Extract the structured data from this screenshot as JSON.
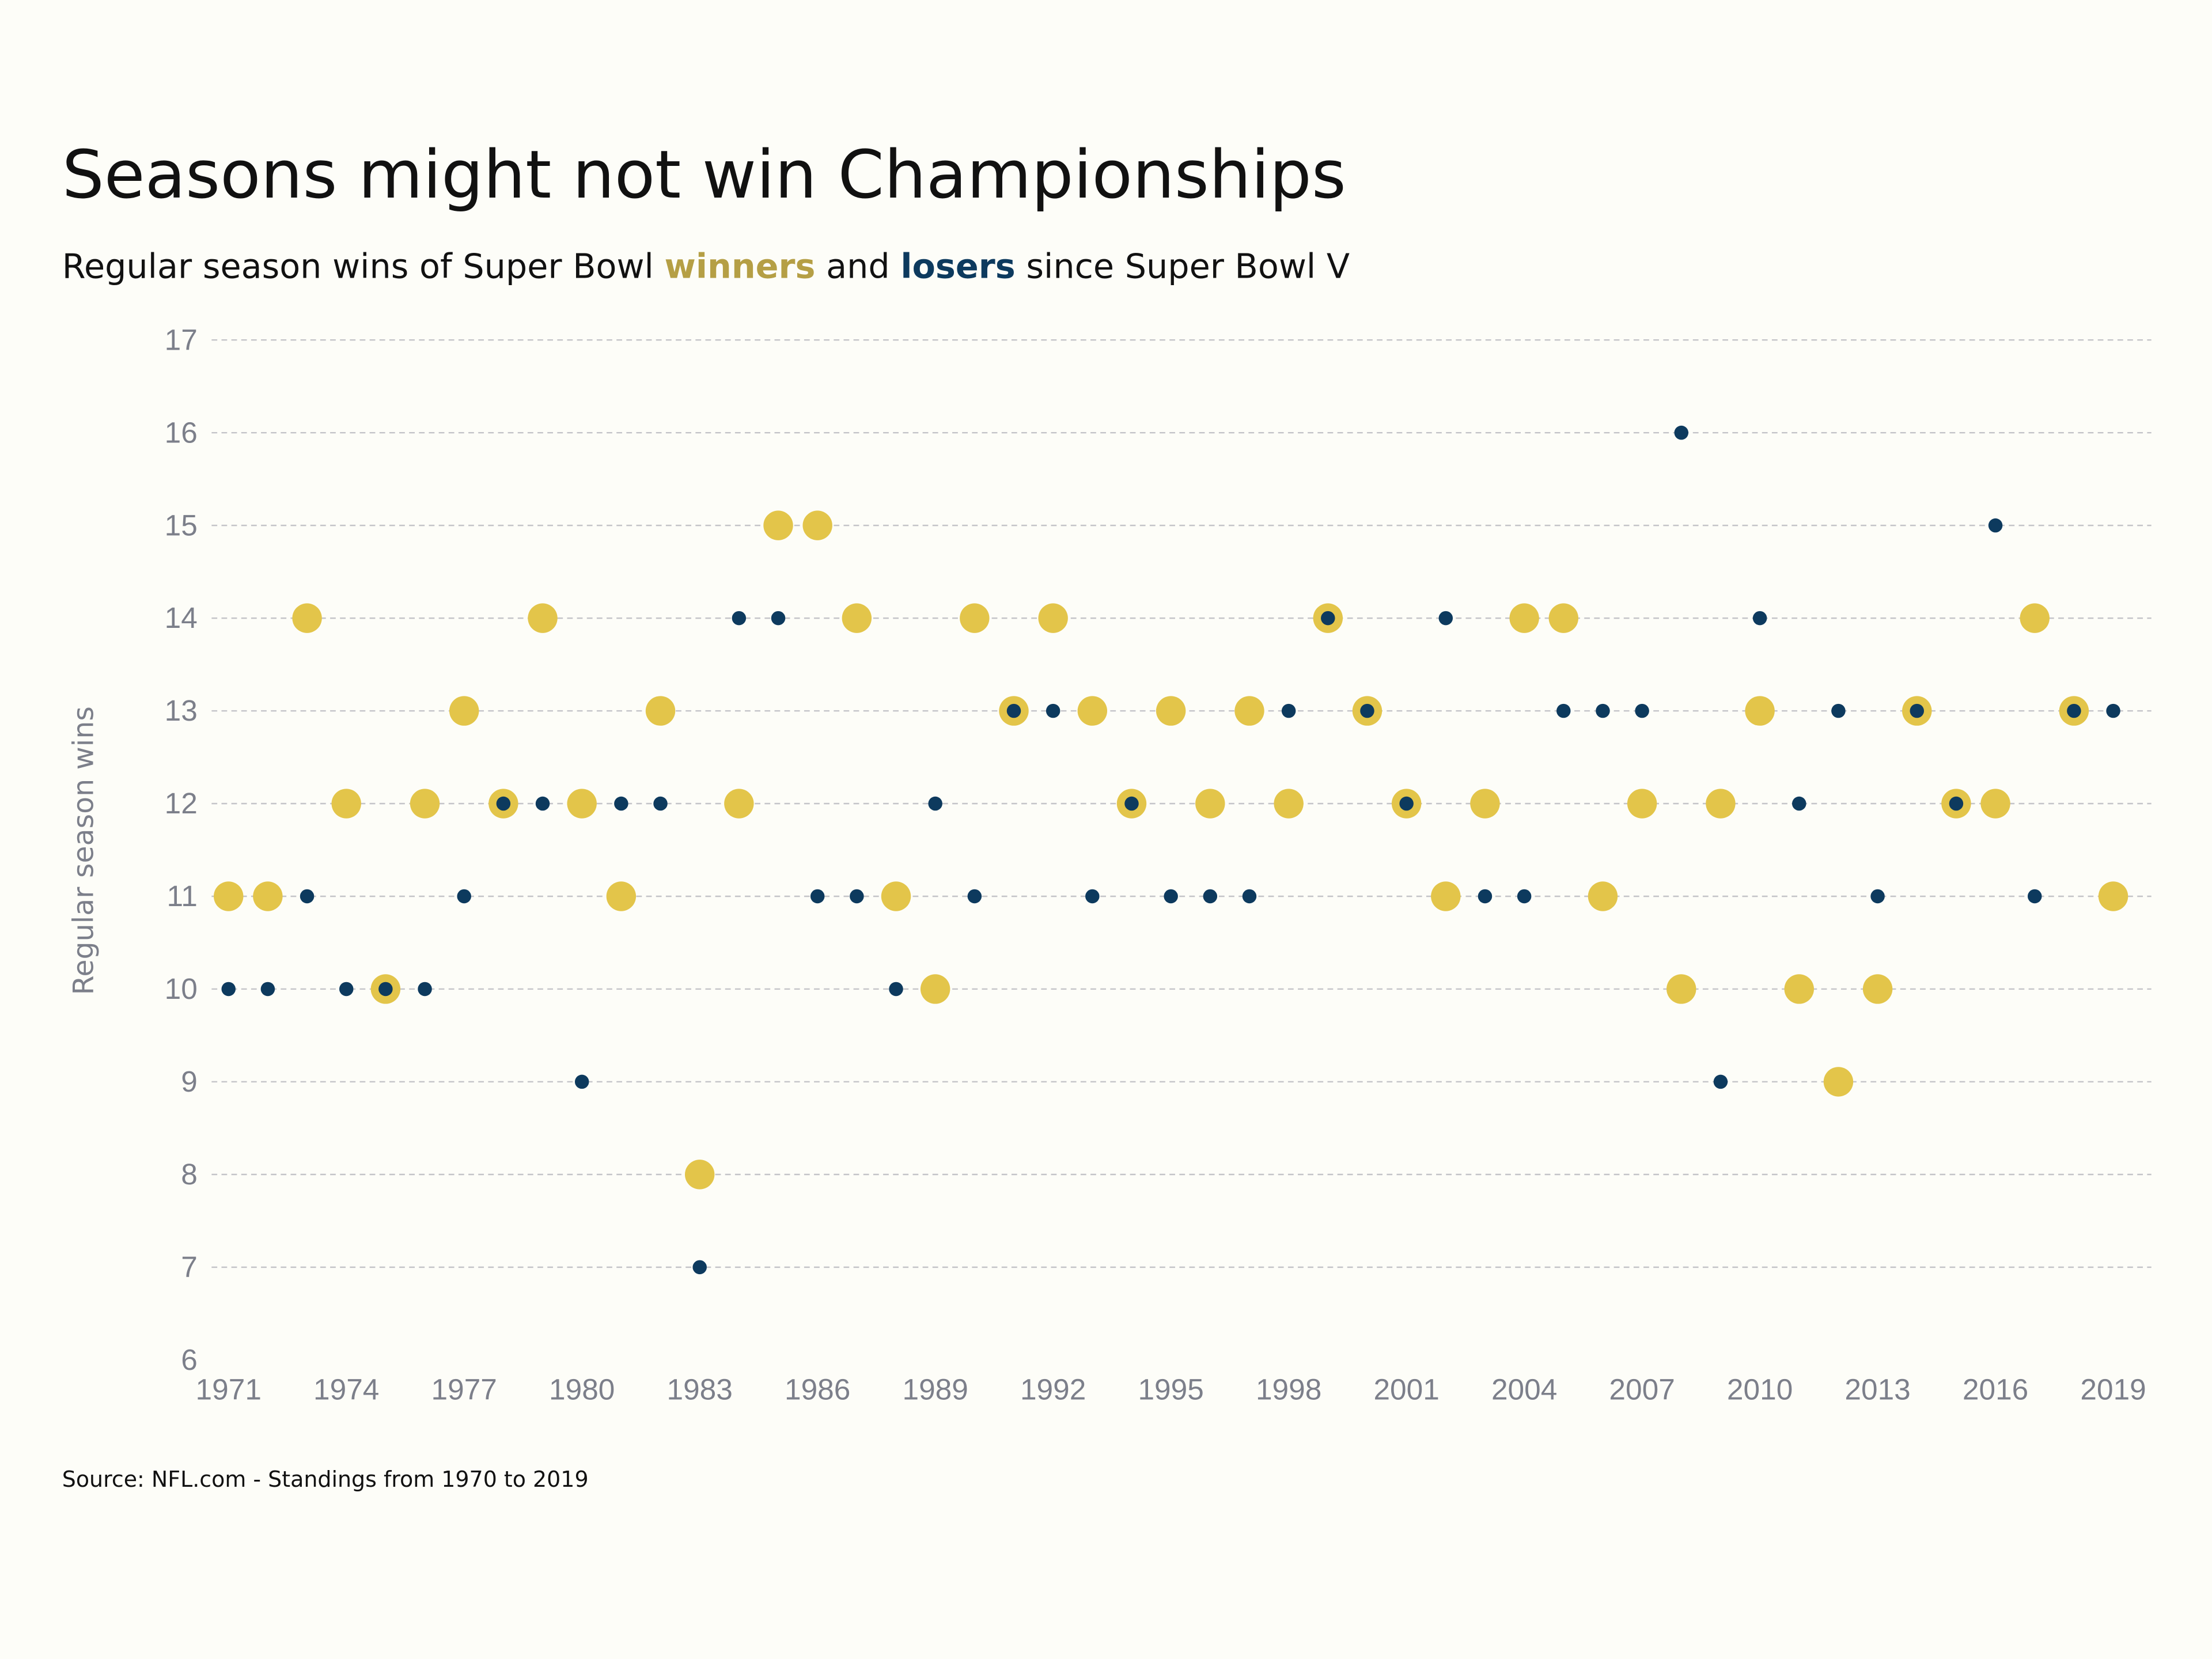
{
  "title": "Seasons might not win Championships",
  "subtitle": {
    "prefix": "Regular season wins of Super Bowl ",
    "winners": "winners",
    "middle": " and ",
    "losers": "losers",
    "suffix": " since Super Bowl V"
  },
  "source": "Source: NFL.com - Standings from 1970 to 2019",
  "colors": {
    "winner": "#e3c54a",
    "winner_text": "#b59f45",
    "loser": "#0d3a5e",
    "background": "#fdfdf8"
  },
  "chart_data": {
    "type": "scatter",
    "title": "Seasons might not win Championships",
    "xlabel": "",
    "ylabel": "Regular season wins",
    "xlim": [
      1971,
      2019
    ],
    "ylim": [
      6,
      17
    ],
    "x_ticks": [
      "1971",
      "1974",
      "1977",
      "1980",
      "1983",
      "1986",
      "1989",
      "1992",
      "1995",
      "1998",
      "2001",
      "2004",
      "2007",
      "2010",
      "2013",
      "2016",
      "2019"
    ],
    "y_ticks": [
      "6",
      "7",
      "8",
      "9",
      "10",
      "11",
      "12",
      "13",
      "14",
      "15",
      "16",
      "17"
    ],
    "grid": "horizontal dashed",
    "x": [
      1971,
      1972,
      1973,
      1974,
      1975,
      1976,
      1977,
      1978,
      1979,
      1980,
      1981,
      1982,
      1983,
      1984,
      1985,
      1986,
      1987,
      1988,
      1989,
      1990,
      1991,
      1992,
      1993,
      1994,
      1995,
      1996,
      1997,
      1998,
      1999,
      2000,
      2001,
      2002,
      2003,
      2004,
      2005,
      2006,
      2007,
      2008,
      2009,
      2010,
      2011,
      2012,
      2013,
      2014,
      2015,
      2016,
      2017,
      2018,
      2019
    ],
    "series": [
      {
        "name": "winners",
        "values": [
          11,
          11,
          14,
          12,
          10,
          12,
          13,
          12,
          14,
          12,
          11,
          13,
          8,
          12,
          15,
          15,
          14,
          11,
          10,
          14,
          13,
          14,
          13,
          12,
          13,
          12,
          13,
          12,
          14,
          13,
          12,
          11,
          12,
          14,
          14,
          11,
          12,
          10,
          12,
          13,
          10,
          9,
          10,
          13,
          12,
          12,
          14,
          13,
          11
        ]
      },
      {
        "name": "losers",
        "values": [
          10,
          10,
          11,
          10,
          10,
          10,
          11,
          12,
          12,
          9,
          12,
          12,
          7,
          14,
          14,
          11,
          11,
          10,
          12,
          11,
          13,
          13,
          11,
          12,
          11,
          11,
          11,
          13,
          14,
          13,
          12,
          14,
          11,
          11,
          13,
          13,
          13,
          16,
          9,
          14,
          12,
          13,
          11,
          13,
          12,
          15,
          11,
          13,
          13
        ]
      }
    ]
  }
}
